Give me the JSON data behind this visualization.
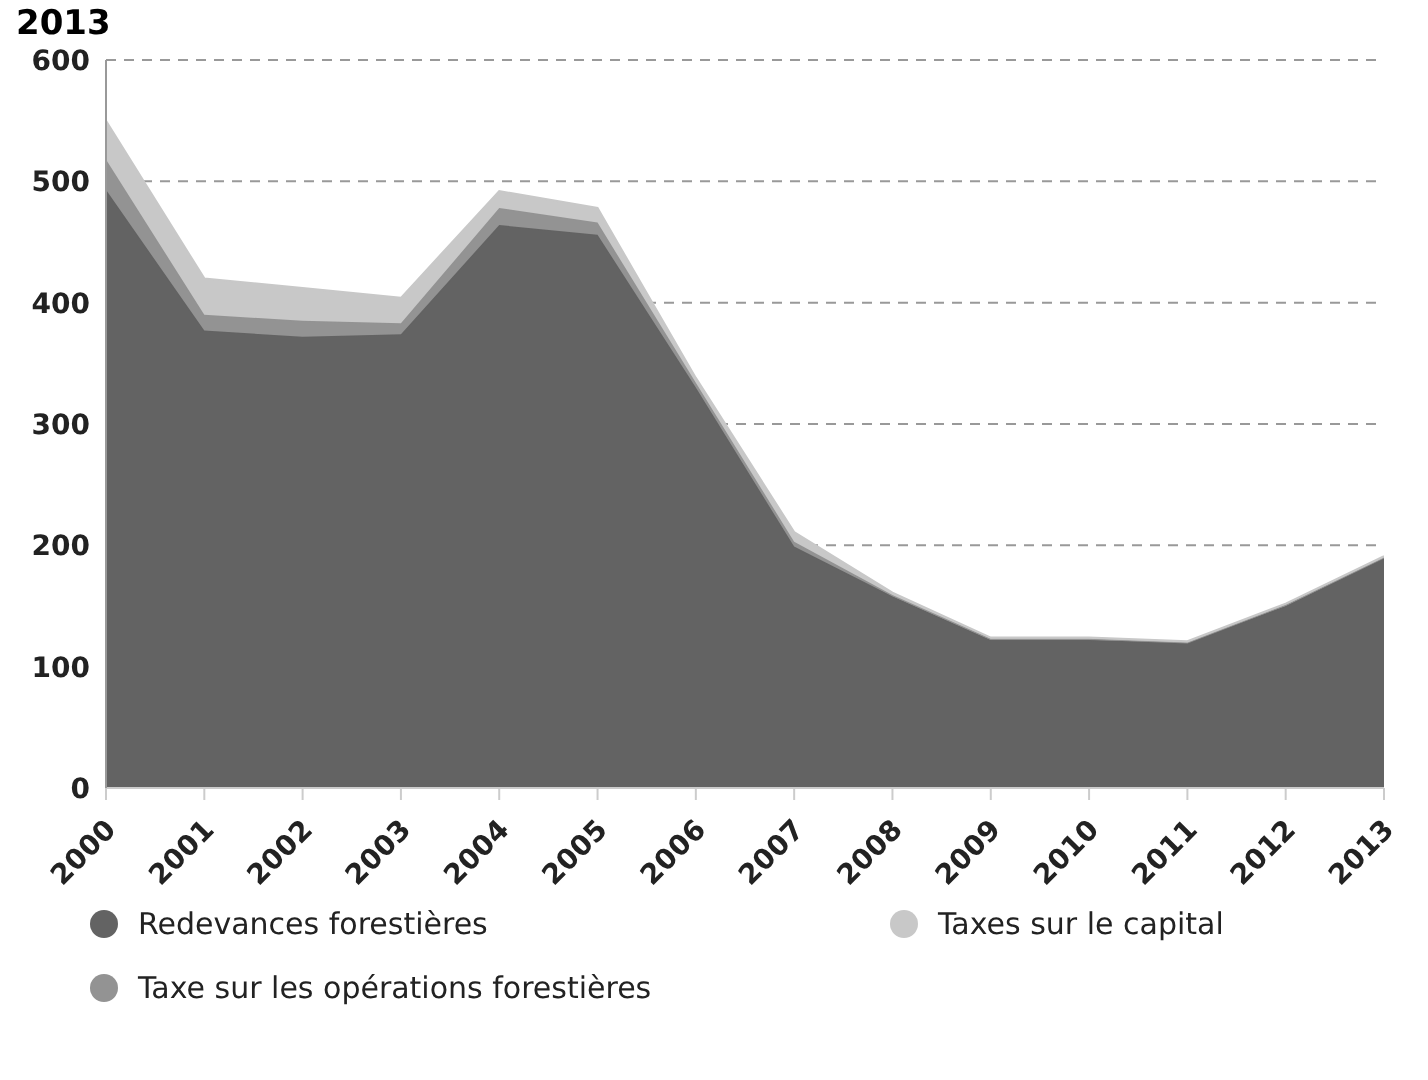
{
  "chart_data": {
    "type": "area",
    "stacked": true,
    "title": "2013",
    "categories": [
      "2000",
      "2001",
      "2002",
      "2003",
      "2004",
      "2005",
      "2006",
      "2007",
      "2008",
      "2009",
      "2010",
      "2011",
      "2012",
      "2013"
    ],
    "series": [
      {
        "name": "Redevances forestières",
        "color": "#636363",
        "values": [
          493,
          377,
          372,
          374,
          464,
          456,
          330,
          199,
          158,
          122,
          122,
          120,
          150,
          190
        ]
      },
      {
        "name": "Taxe sur les opérations forestières",
        "color": "#939393",
        "values": [
          25,
          13,
          13,
          9,
          14,
          10,
          4,
          4,
          1,
          1,
          1,
          0,
          1,
          0
        ]
      },
      {
        "name": "Taxes sur le capital",
        "color": "#c8c8c8",
        "values": [
          32,
          30,
          27,
          21,
          14,
          12,
          4,
          8,
          2,
          1,
          1,
          1,
          1,
          1
        ]
      }
    ],
    "ylim": [
      0,
      600
    ],
    "yticks": [
      0,
      100,
      200,
      300,
      400,
      500,
      600
    ],
    "grid": "y",
    "legend": "bottom"
  }
}
